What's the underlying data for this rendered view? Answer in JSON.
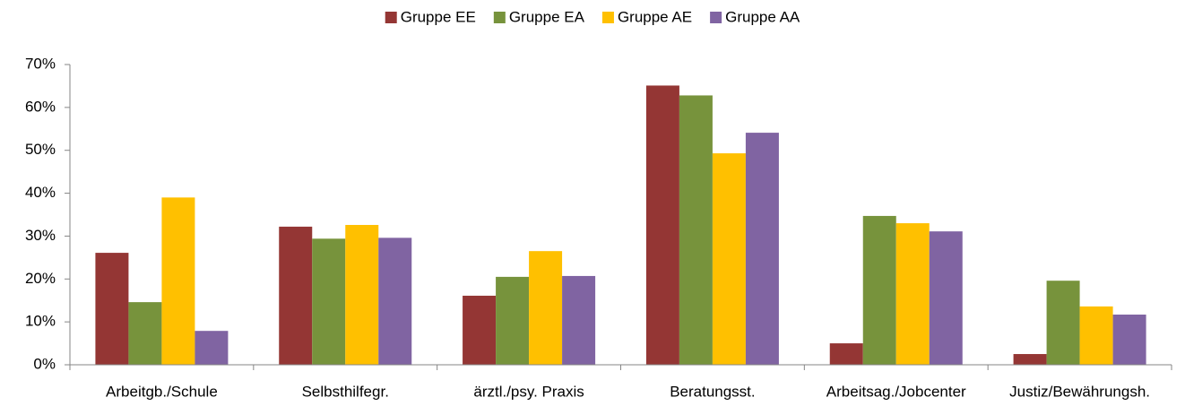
{
  "chart_data": {
    "type": "bar",
    "categories": [
      "Arbeitgb./Schule",
      "Selbsthilfegr.",
      "ärztl./psy. Praxis",
      "Beratungsst.",
      "Arbeitsag./Jobcenter",
      "Justiz/Bewährungsh."
    ],
    "series": [
      {
        "name": "Gruppe EE",
        "color": "#943634",
        "values": [
          26.1,
          32.2,
          16.1,
          65.1,
          5.0,
          2.5
        ]
      },
      {
        "name": "Gruppe EA",
        "color": "#77933c",
        "values": [
          14.6,
          29.4,
          20.5,
          62.8,
          34.7,
          19.6
        ]
      },
      {
        "name": "Gruppe AE",
        "color": "#ffc000",
        "values": [
          39.0,
          32.6,
          26.5,
          49.3,
          33.0,
          13.6
        ]
      },
      {
        "name": "Gruppe AA",
        "color": "#8064a2",
        "values": [
          7.9,
          29.6,
          20.7,
          54.1,
          31.1,
          11.7
        ]
      }
    ],
    "ylim": [
      0,
      70
    ],
    "yticks": [
      {
        "value": 0,
        "label": "0%"
      },
      {
        "value": 10,
        "label": "10%"
      },
      {
        "value": 20,
        "label": "20%"
      },
      {
        "value": 30,
        "label": "30%"
      },
      {
        "value": 40,
        "label": "40%"
      },
      {
        "value": 50,
        "label": "50%"
      },
      {
        "value": 60,
        "label": "60%"
      },
      {
        "value": 70,
        "label": "70%"
      }
    ],
    "grid": false,
    "legend": "top"
  }
}
